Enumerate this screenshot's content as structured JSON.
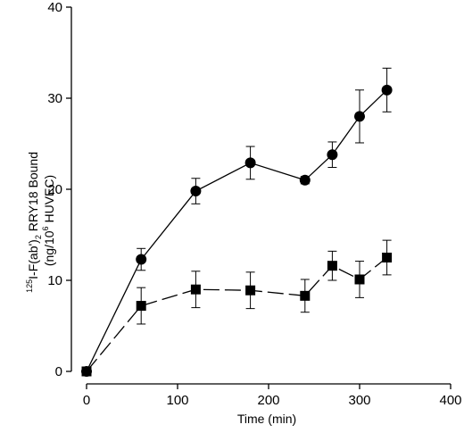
{
  "chart_data": {
    "type": "line",
    "title": "",
    "xlabel": "Time (min)",
    "ylabel": {
      "line1_prefix_sup": "125",
      "line1_main": "I-F(ab')",
      "line1_sub": "2",
      "line1_suffix": " RRY18 Bound",
      "line2_prefix": "(ng/10",
      "line2_sup": "6",
      "line2_suffix": " HUVEC)"
    },
    "xlim": [
      0,
      400
    ],
    "ylim": [
      0,
      40
    ],
    "xticks": [
      0,
      100,
      200,
      300,
      400
    ],
    "yticks": [
      0,
      10,
      20,
      30,
      40
    ],
    "grid": false,
    "legend": "none",
    "series": [
      {
        "marker": "circle",
        "line_style": "solid",
        "x": [
          0,
          60,
          120,
          180,
          240,
          270,
          300,
          330
        ],
        "y": [
          0,
          12.3,
          19.8,
          22.9,
          21.0,
          23.8,
          28.0,
          30.9
        ],
        "err": [
          0,
          1.2,
          1.4,
          1.8,
          0.4,
          1.4,
          2.9,
          2.4
        ]
      },
      {
        "marker": "square",
        "line_style": "dashed",
        "x": [
          0,
          60,
          120,
          180,
          240,
          270,
          300,
          330
        ],
        "y": [
          0,
          7.2,
          9.0,
          8.9,
          8.3,
          11.6,
          10.1,
          12.5
        ],
        "err": [
          0,
          2.0,
          2.0,
          2.0,
          1.8,
          1.6,
          2.0,
          1.9
        ]
      }
    ]
  }
}
